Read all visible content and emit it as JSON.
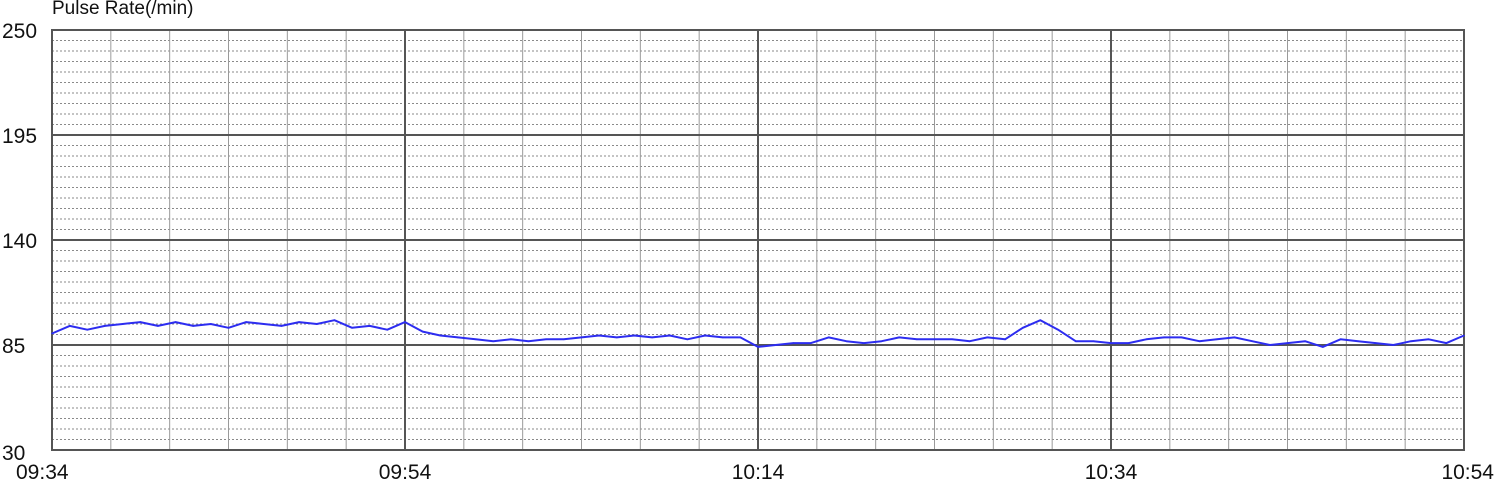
{
  "chart_data": {
    "type": "line",
    "ylabel": "Pulse Rate(/min)",
    "ylim": [
      30,
      250
    ],
    "yticks": [
      "250",
      "195",
      "140",
      "85",
      "30"
    ],
    "xlim": [
      "09:34",
      "10:54"
    ],
    "xticks": [
      "09:34",
      "09:54",
      "10:14",
      "10:34",
      "10:54"
    ],
    "grid": true,
    "line_color": "#2d2df0",
    "series": [
      {
        "x": [
          "09:34",
          "09:35",
          "09:36",
          "09:37",
          "09:38",
          "09:39",
          "09:40",
          "09:41",
          "09:42",
          "09:43",
          "09:44",
          "09:45",
          "09:46",
          "09:47",
          "09:48",
          "09:49",
          "09:50",
          "09:51",
          "09:52",
          "09:53",
          "09:54",
          "09:55",
          "09:56",
          "09:57",
          "09:58",
          "09:59",
          "10:00",
          "10:01",
          "10:02",
          "10:03",
          "10:04",
          "10:05",
          "10:06",
          "10:07",
          "10:08",
          "10:09",
          "10:10",
          "10:11",
          "10:12",
          "10:13",
          "10:14",
          "10:15",
          "10:16",
          "10:17",
          "10:18",
          "10:19",
          "10:20",
          "10:21",
          "10:22",
          "10:23",
          "10:24",
          "10:25",
          "10:26",
          "10:27",
          "10:28",
          "10:29",
          "10:30",
          "10:31",
          "10:32",
          "10:33",
          "10:34",
          "10:35",
          "10:36",
          "10:37",
          "10:38",
          "10:39",
          "10:40",
          "10:41",
          "10:42",
          "10:43",
          "10:44",
          "10:45",
          "10:46",
          "10:47",
          "10:48",
          "10:49",
          "10:50",
          "10:51",
          "10:52",
          "10:53",
          "10:54"
        ],
        "values": [
          91,
          95,
          93,
          95,
          96,
          97,
          95,
          97,
          95,
          96,
          94,
          97,
          96,
          95,
          97,
          96,
          98,
          94,
          95,
          93,
          97,
          92,
          90,
          89,
          88,
          87,
          88,
          87,
          88,
          88,
          89,
          90,
          89,
          90,
          89,
          90,
          88,
          90,
          89,
          89,
          84,
          85,
          86,
          86,
          89,
          87,
          86,
          87,
          89,
          88,
          88,
          88,
          87,
          89,
          88,
          94,
          98,
          93,
          87,
          87,
          86,
          86,
          88,
          89,
          89,
          87,
          88,
          89,
          87,
          85,
          86,
          87,
          84,
          88,
          87,
          86,
          85,
          87,
          88,
          86,
          90
        ]
      }
    ]
  }
}
